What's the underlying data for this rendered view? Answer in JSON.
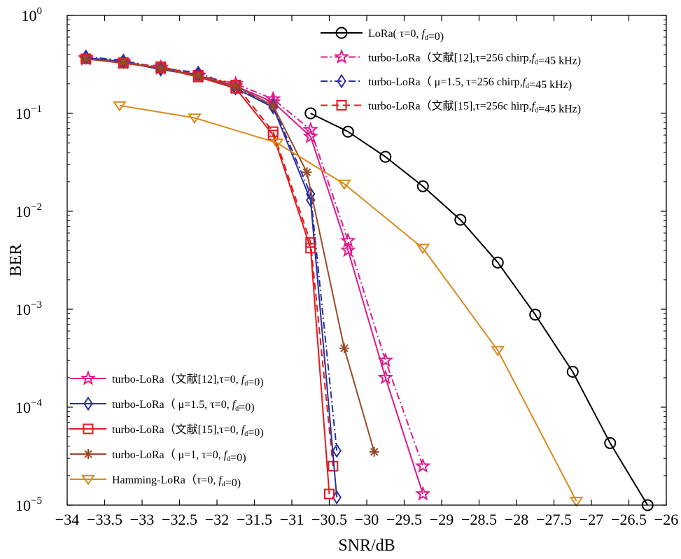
{
  "chart_data": {
    "type": "line",
    "xlabel": "SNR/dB",
    "ylabel": "BER",
    "xlim": [
      -34,
      -26
    ],
    "ylim": [
      1e-05,
      1
    ],
    "yscale": "log",
    "grid": false,
    "x_ticks": [
      -34,
      -33.5,
      -33,
      -32.5,
      -32,
      -31.5,
      -31,
      -30.5,
      -30,
      -29.5,
      -29,
      -28.5,
      -28,
      -27.5,
      -27,
      -26.5,
      -26
    ],
    "x_tick_labels": [
      "−34",
      "−33.5",
      "−33",
      "−32.5",
      "−32",
      "−31.5",
      "−31",
      "−30.5",
      "−30",
      "−29.5",
      "−29",
      "−28.5",
      "−28",
      "−27.5",
      "−27",
      "−26.5",
      "−26"
    ],
    "y_ticks": [
      {
        "value": 1,
        "base": "10",
        "exp": "0"
      },
      {
        "value": 0.1,
        "base": "10",
        "exp": "-1"
      },
      {
        "value": 0.01,
        "base": "10",
        "exp": "-2"
      },
      {
        "value": 0.001,
        "base": "10",
        "exp": "-3"
      },
      {
        "value": 0.0001,
        "base": "10",
        "exp": "-4"
      },
      {
        "value": 1e-05,
        "base": "10",
        "exp": "-5"
      }
    ],
    "legend_top": {
      "position": "top-right",
      "entries": [
        {
          "series": 0,
          "text": "LoRa( τ=0, f_d=0)"
        },
        {
          "series": 1,
          "text": "turbo-LoRa（文献[12],τ=256 chirp,f_d=45 kHz)"
        },
        {
          "series": 2,
          "text": "turbo-LoRa（ μ=1.5,  τ=256 chirp,f_d=45 kHz)"
        },
        {
          "series": 3,
          "text": "turbo-LoRa（文献[15],τ=256c hirp,f_d=45 kHz)"
        }
      ]
    },
    "legend_bottom": {
      "position": "bottom-left",
      "entries": [
        {
          "series": 4,
          "text": "turbo-LoRa（文献[12],τ=0, f_d=0)"
        },
        {
          "series": 5,
          "text": "turbo-LoRa（ μ=1.5,  τ=0, f_d=0)"
        },
        {
          "series": 6,
          "text": "turbo-LoRa（文献[15],τ=0, f_d=0)"
        },
        {
          "series": 7,
          "text": "turbo-LoRa（ μ=1,  τ=0, f_d=0)"
        },
        {
          "series": 8,
          "text": "Hamming-LoRa（τ=0, f_d=0)"
        }
      ]
    },
    "series": [
      {
        "color": "#000000",
        "dash": "solid",
        "marker": "circle",
        "x": [
          -30.75,
          -30.25,
          -29.75,
          -29.25,
          -28.75,
          -28.25,
          -27.75,
          -27.25,
          -26.75,
          -26.25
        ],
        "y": [
          0.1,
          0.065,
          0.036,
          0.018,
          0.0082,
          0.003,
          0.00088,
          0.00023,
          4.3e-05,
          1e-05
        ]
      },
      {
        "color": "#e0198c",
        "dash": "dashdot",
        "marker": "star",
        "x": [
          -33.75,
          -33.25,
          -32.75,
          -32.25,
          -31.75,
          -31.25,
          -30.75,
          -30.25,
          -29.75,
          -29.25
        ],
        "y": [
          0.37,
          0.34,
          0.295,
          0.245,
          0.2,
          0.14,
          0.068,
          0.005,
          0.0003,
          2.5e-05
        ]
      },
      {
        "color": "#2b2fa0",
        "dash": "dashdot",
        "marker": "diamond",
        "x": [
          -33.75,
          -33.25,
          -32.75,
          -32.25,
          -31.75,
          -31.25,
          -30.75,
          -30.4
        ],
        "y": [
          0.38,
          0.345,
          0.29,
          0.26,
          0.185,
          0.12,
          0.015,
          3.6e-05
        ]
      },
      {
        "color": "#e31a1c",
        "dash": "dash",
        "marker": "square",
        "x": [
          -33.75,
          -33.25,
          -32.75,
          -32.25,
          -31.75,
          -31.25,
          -30.75,
          -30.45
        ],
        "y": [
          0.36,
          0.33,
          0.3,
          0.245,
          0.195,
          0.065,
          0.0048,
          2.5e-05
        ]
      },
      {
        "color": "#e0198c",
        "dash": "solid",
        "marker": "star",
        "x": [
          -33.75,
          -33.25,
          -32.75,
          -32.25,
          -31.75,
          -31.25,
          -30.75,
          -30.25,
          -29.75,
          -29.25
        ],
        "y": [
          0.36,
          0.33,
          0.29,
          0.24,
          0.19,
          0.13,
          0.058,
          0.004,
          0.0002,
          1.3e-05
        ]
      },
      {
        "color": "#2b2fa0",
        "dash": "solid",
        "marker": "diamond",
        "x": [
          -33.75,
          -33.25,
          -32.75,
          -32.25,
          -31.75,
          -31.25,
          -30.75,
          -30.4
        ],
        "y": [
          0.37,
          0.335,
          0.28,
          0.245,
          0.18,
          0.115,
          0.013,
          1.2e-05
        ]
      },
      {
        "color": "#e31a1c",
        "dash": "solid",
        "marker": "square",
        "x": [
          -33.75,
          -33.25,
          -32.75,
          -32.25,
          -31.75,
          -31.25,
          -30.75,
          -30.5
        ],
        "y": [
          0.36,
          0.325,
          0.29,
          0.235,
          0.18,
          0.06,
          0.0042,
          1.3e-05
        ]
      },
      {
        "color": "#9b4a26",
        "dash": "solid",
        "marker": "asterisk",
        "x": [
          -33.75,
          -33.25,
          -32.75,
          -32.25,
          -31.75,
          -31.25,
          -30.8,
          -30.3,
          -29.9
        ],
        "y": [
          0.36,
          0.33,
          0.29,
          0.24,
          0.19,
          0.12,
          0.025,
          0.0004,
          3.5e-05
        ]
      },
      {
        "color": "#d9891c",
        "dash": "solid",
        "marker": "triangle-down",
        "x": [
          -33.3,
          -32.3,
          -31.2,
          -30.3,
          -29.25,
          -28.25,
          -27.2
        ],
        "y": [
          0.12,
          0.09,
          0.05,
          0.019,
          0.0042,
          0.00038,
          1.1e-05
        ]
      }
    ]
  }
}
